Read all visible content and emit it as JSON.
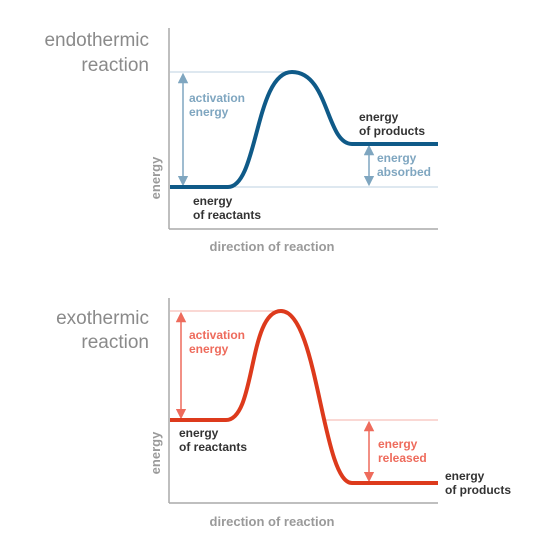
{
  "endothermic": {
    "title_line1": "endothermic",
    "title_line2": "reaction",
    "y_axis_label": "energy",
    "x_axis_label": "direction of reaction",
    "activation_line1": "activation",
    "activation_line2": "energy",
    "products_line1": "energy",
    "products_line2": "of products",
    "delta_line1": "energy",
    "delta_line2": "absorbed",
    "reactants_line1": "energy",
    "reactants_line2": "of reactants",
    "curve_color": "#0f5a88",
    "annotation_color": "#7fa6c0"
  },
  "exothermic": {
    "title_line1": "exothermic",
    "title_line2": "reaction",
    "y_axis_label": "energy",
    "x_axis_label": "direction of reaction",
    "activation_line1": "activation",
    "activation_line2": "energy",
    "reactants_line1": "energy",
    "reactants_line2": "of reactants",
    "delta_line1": "energy",
    "delta_line2": "released",
    "products_line1": "energy",
    "products_line2": "of products",
    "curve_color": "#dd3a1c",
    "annotation_color": "#ee6b5c"
  }
}
